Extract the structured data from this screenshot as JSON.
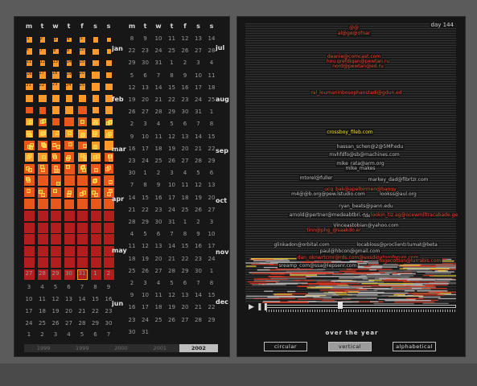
{
  "calendar": {
    "day_headers": [
      "m",
      "t",
      "w",
      "t",
      "f",
      "s",
      "s"
    ],
    "month_labels_left": [
      "jan",
      "feb",
      "mar",
      "apr",
      "may",
      "jun"
    ],
    "month_labels_right": [
      "jul",
      "aug",
      "sep",
      "oct",
      "nov",
      "dec"
    ],
    "left_numbers": {
      "row_may_end": [
        "27",
        "28",
        "29",
        "30",
        "31",
        "1",
        "2"
      ],
      "rows": [
        [
          "3",
          "4",
          "5",
          "6",
          "7",
          "8",
          "9"
        ],
        [
          "10",
          "11",
          "12",
          "13",
          "14",
          "15",
          "16"
        ],
        [
          "17",
          "18",
          "19",
          "20",
          "21",
          "22",
          "23"
        ],
        [
          "24",
          "25",
          "26",
          "27",
          "28",
          "29",
          "30"
        ],
        [
          "1",
          "2",
          "3",
          "4",
          "5",
          "6",
          "7"
        ]
      ]
    },
    "right_rows": [
      [
        "8",
        "9",
        "10",
        "11",
        "12",
        "13",
        "14"
      ],
      [
        "22",
        "23",
        "24",
        "25",
        "26",
        "27",
        "28"
      ],
      [
        "29",
        "30",
        "31",
        "1",
        "2",
        "3",
        "4"
      ],
      [
        "5",
        "6",
        "7",
        "8",
        "9",
        "10",
        "11"
      ],
      [
        "12",
        "13",
        "14",
        "15",
        "16",
        "17",
        "18"
      ],
      [
        "19",
        "20",
        "21",
        "22",
        "23",
        "24",
        "25"
      ],
      [
        "26",
        "27",
        "28",
        "29",
        "30",
        "31",
        "1"
      ],
      [
        "2",
        "3",
        "4",
        "5",
        "6",
        "7",
        "8"
      ],
      [
        "9",
        "10",
        "11",
        "12",
        "13",
        "14",
        "15"
      ],
      [
        "16",
        "17",
        "18",
        "19",
        "20",
        "21",
        "22"
      ],
      [
        "23",
        "24",
        "25",
        "26",
        "27",
        "28",
        "29"
      ],
      [
        "30",
        "1",
        "2",
        "3",
        "4",
        "5",
        "6"
      ],
      [
        "7",
        "8",
        "9",
        "10",
        "11",
        "12",
        "13"
      ],
      [
        "14",
        "15",
        "16",
        "17",
        "18",
        "19",
        "20"
      ],
      [
        "21",
        "22",
        "23",
        "24",
        "25",
        "26",
        "27"
      ],
      [
        "28",
        "29",
        "30",
        "31",
        "1",
        "2",
        "3"
      ],
      [
        "4",
        "5",
        "6",
        "7",
        "8",
        "9",
        "10"
      ],
      [
        "11",
        "12",
        "13",
        "14",
        "15",
        "16",
        "17"
      ],
      [
        "18",
        "19",
        "20",
        "21",
        "22",
        "23",
        "24"
      ],
      [
        "25",
        "26",
        "27",
        "28",
        "29",
        "30",
        "1"
      ],
      [
        "2",
        "3",
        "4",
        "5",
        "6",
        "7",
        "8"
      ],
      [
        "9",
        "10",
        "11",
        "12",
        "13",
        "14",
        "15"
      ],
      [
        "16",
        "17",
        "18",
        "19",
        "20",
        "21",
        "22"
      ],
      [
        "23",
        "24",
        "25",
        "26",
        "27",
        "28",
        "29"
      ],
      [
        "30",
        "31",
        "",
        "",
        "",
        "",
        ""
      ]
    ],
    "cell_day_numbers": [
      "1",
      "2",
      "3",
      "4",
      "5",
      "6",
      "7",
      "8",
      "9",
      "10",
      "11",
      "12",
      "13",
      "14",
      "15",
      "16",
      "17",
      "18",
      "19",
      "20",
      "21",
      "22",
      "23",
      "24",
      "25",
      "26",
      "27",
      "28",
      "29",
      "30",
      "31"
    ],
    "years": [
      "1999",
      "1999",
      "2000",
      "2001",
      "2002"
    ],
    "selected_year": "2002",
    "colors": {
      "low": "#ff9a2a",
      "mid": "#e8581c",
      "high": "#b21e1e",
      "highlight": "#ffd44a"
    }
  },
  "viz": {
    "day_label": "day",
    "day_value": "144",
    "entries": [
      {
        "text": "@@",
        "color": "red"
      },
      {
        "text": "al@ge@ofnar",
        "color": "red"
      },
      {
        "text": "deanie@comcast.com",
        "color": "red"
      },
      {
        "text": "hou.grefdigan@pewtan.ru",
        "color": "red"
      },
      {
        "text": "nord@pewtan@ed.ru",
        "color": "red"
      },
      {
        "text": "ral_loumaninbosophanstadi@gdun.ed",
        "color": "red"
      },
      {
        "text": "crossboy_fileb.com",
        "color": "yellow"
      },
      {
        "text": "hassan_schen@2@5MP.edu",
        "color": "white"
      },
      {
        "text": "mvhfdfo@sb@machines.com",
        "color": "white"
      },
      {
        "text": "mike_rata@arm.org",
        "color": "white"
      },
      {
        "text": "mike_makes",
        "color": "white"
      },
      {
        "text": "mtorel@fuller",
        "color": "white"
      },
      {
        "text": "markey_dad@fibrtzr.com",
        "color": "white"
      },
      {
        "text": "ucg_bak@apelbirmen@bangy",
        "color": "red"
      },
      {
        "text": "m4@@b.org@pew.lstudio.com",
        "color": "white"
      },
      {
        "text": "lookss@aul.org",
        "color": "white"
      },
      {
        "text": "ryan_beats@pann.edu",
        "color": "white"
      },
      {
        "text": "arnold@pertner@medeabtbri.com",
        "color": "white"
      },
      {
        "text": "fdeeeadfanion@groups.edu",
        "color": "white"
      },
      {
        "text": "lookin_tiz.ag@ocewmlltracabade.ge",
        "color": "red"
      },
      {
        "text": "Vinceastobian@yahoo.com",
        "color": "white"
      },
      {
        "text": "tinn@phg_@saakdo.er",
        "color": "red"
      },
      {
        "text": "glinkadon@orbital.com",
        "color": "white"
      },
      {
        "text": "locabloss@proclients",
        "color": "white"
      },
      {
        "text": "tumat@beta",
        "color": "white"
      },
      {
        "text": "paul@hbcon@gmail.com",
        "color": "white"
      },
      {
        "text": "dan_oknwrtcmr@rds.com@exsdigatornforum.com",
        "color": "red"
      },
      {
        "text": "fogecoltion@lurrabis.com",
        "color": "red"
      },
      {
        "text": "sreamp_com@ssa@lepsenr.com",
        "color": "white"
      }
    ],
    "play_label": "▶",
    "pause_label": "❚❚",
    "progress": 0.39,
    "caption": "over the year",
    "layout_buttons": [
      {
        "label": "circular",
        "active": false
      },
      {
        "label": "vertical",
        "active": true
      },
      {
        "label": "alphabetical",
        "active": false
      }
    ]
  }
}
